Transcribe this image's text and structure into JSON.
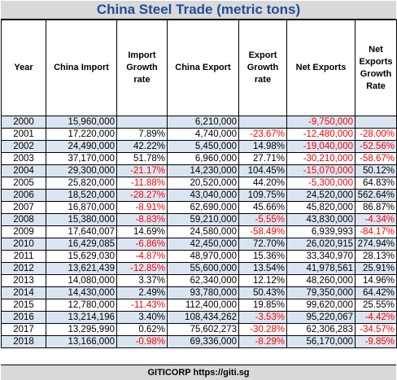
{
  "title": "China Steel Trade (metric tons)",
  "headers": [
    "Year",
    "China Import",
    "Import Growth rate",
    "China Export",
    "Export Growth rate",
    "Net Exports",
    "Net Exports Growth Rate"
  ],
  "rows": [
    {
      "year": "2000",
      "import": "15,960,000",
      "import_growth": "",
      "export": "6,210,000",
      "export_growth": "",
      "net_exports": "-9,750,000",
      "net_growth": ""
    },
    {
      "year": "2001",
      "import": "17,220,000",
      "import_growth": "7.89%",
      "export": "4,740,000",
      "export_growth": "-23.67%",
      "net_exports": "-12,480,000",
      "net_growth": "-28.00%"
    },
    {
      "year": "2002",
      "import": "24,490,000",
      "import_growth": "42.22%",
      "export": "5,450,000",
      "export_growth": "14.98%",
      "net_exports": "-19,040,000",
      "net_growth": "-52.56%"
    },
    {
      "year": "2003",
      "import": "37,170,000",
      "import_growth": "51.78%",
      "export": "6,960,000",
      "export_growth": "27.71%",
      "net_exports": "-30,210,000",
      "net_growth": "-58.67%"
    },
    {
      "year": "2004",
      "import": "29,300,000",
      "import_growth": "-21.17%",
      "export": "14,230,000",
      "export_growth": "104.45%",
      "net_exports": "-15,070,000",
      "net_growth": "50.12%"
    },
    {
      "year": "2005",
      "import": "25,820,000",
      "import_growth": "-11.88%",
      "export": "20,520,000",
      "export_growth": "44.20%",
      "net_exports": "-5,300,000",
      "net_growth": "64.83%"
    },
    {
      "year": "2006",
      "import": "18,520,000",
      "import_growth": "-28.27%",
      "export": "43,040,000",
      "export_growth": "109.75%",
      "net_exports": "24,520,000",
      "net_growth": "562.64%"
    },
    {
      "year": "2007",
      "import": "16,870,000",
      "import_growth": "-8.91%",
      "export": "62,690,000",
      "export_growth": "45.66%",
      "net_exports": "45,820,000",
      "net_growth": "86.87%"
    },
    {
      "year": "2008",
      "import": "15,380,000",
      "import_growth": "-8.83%",
      "export": "59,210,000",
      "export_growth": "-5.55%",
      "net_exports": "43,830,000",
      "net_growth": "-4.34%"
    },
    {
      "year": "2009",
      "import": "17,640,007",
      "import_growth": "14.69%",
      "export": "24,580,000",
      "export_growth": "-58.49%",
      "net_exports": "6,939,993",
      "net_growth": "-84.17%"
    },
    {
      "year": "2010",
      "import": "16,429,085",
      "import_growth": "-6.86%",
      "export": "42,450,000",
      "export_growth": "72.70%",
      "net_exports": "26,020,915",
      "net_growth": "274.94%"
    },
    {
      "year": "2011",
      "import": "15,629,030",
      "import_growth": "-4.87%",
      "export": "48,970,000",
      "export_growth": "15.36%",
      "net_exports": "33,340,970",
      "net_growth": "28.13%"
    },
    {
      "year": "2012",
      "import": "13,621,439",
      "import_growth": "-12.85%",
      "export": "55,600,000",
      "export_growth": "13.54%",
      "net_exports": "41,978,561",
      "net_growth": "25.91%"
    },
    {
      "year": "2013",
      "import": "14,080,000",
      "import_growth": "3.37%",
      "export": "62,340,000",
      "export_growth": "12.12%",
      "net_exports": "48,260,000",
      "net_growth": "14.96%"
    },
    {
      "year": "2014",
      "import": "14,430,000",
      "import_growth": "2.49%",
      "export": "93,780,000",
      "export_growth": "50.43%",
      "net_exports": "79,350,000",
      "net_growth": "64.42%"
    },
    {
      "year": "2015",
      "import": "12,780,000",
      "import_growth": "-11.43%",
      "export": "112,400,000",
      "export_growth": "19.85%",
      "net_exports": "99,620,000",
      "net_growth": "25.55%"
    },
    {
      "year": "2016",
      "import": "13,214,196",
      "import_growth": "3.40%",
      "export": "108,434,262",
      "export_growth": "-3.53%",
      "net_exports": "95,220,067",
      "net_growth": "-4.42%"
    },
    {
      "year": "2017",
      "import": "13,295,990",
      "import_growth": "0.62%",
      "export": "75,602,273",
      "export_growth": "-30.28%",
      "net_exports": "62,306,283",
      "net_growth": "-34.57%"
    },
    {
      "year": "2018",
      "import": "13,166,000",
      "import_growth": "-0.98%",
      "export": "69,336,000",
      "export_growth": "-8.29%",
      "net_exports": "56,170,000",
      "net_growth": "-9.85%"
    }
  ],
  "footer": "GITICORP  https://giti.sg",
  "colors": {
    "title_text": "#1f4e99",
    "title_bg": "#d9d9d9",
    "row_shade": "#dbe5f1",
    "negative": "#ff0000"
  }
}
